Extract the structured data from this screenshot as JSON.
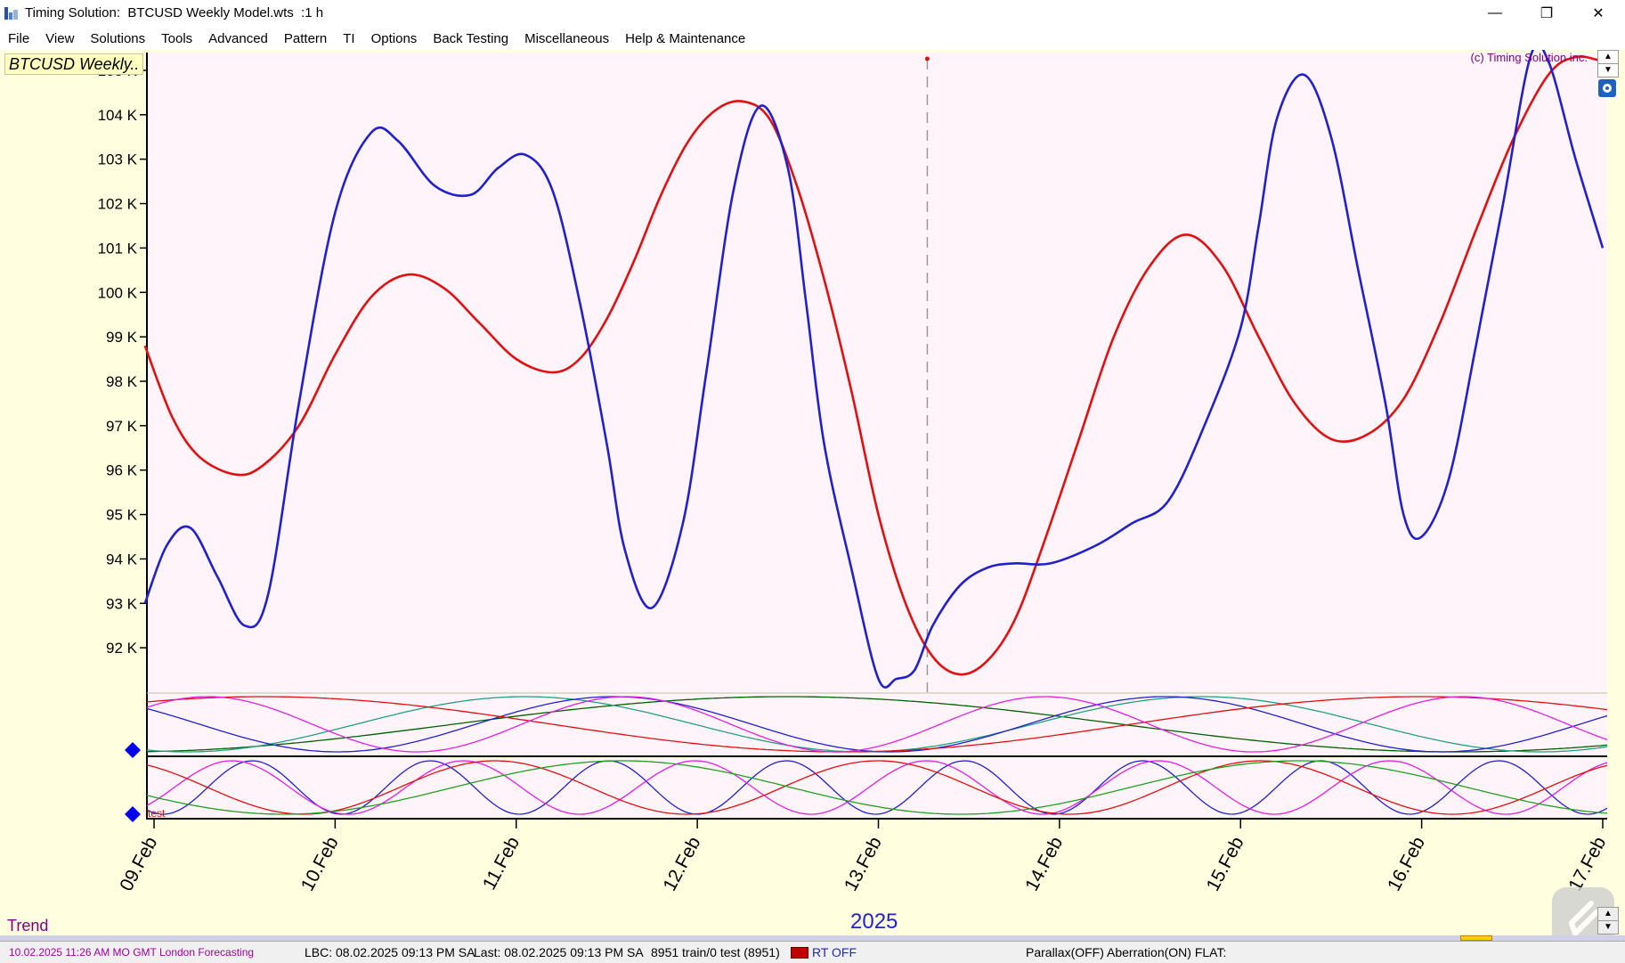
{
  "window": {
    "title": "Timing Solution:  BTCUSD Weekly Model.wts  :1 h",
    "minimize": "—",
    "maximize": "❐",
    "close": "✕"
  },
  "menu": [
    "File",
    "View",
    "Solutions",
    "Tools",
    "Advanced",
    "Pattern",
    "TI",
    "Options",
    "Back Testing",
    "Miscellaneous",
    "Help & Maintenance"
  ],
  "chart": {
    "label": "BTCUSD Weekly..",
    "copyright": "(c) Timing Solution inc.",
    "trend_label": "Trend",
    "year": "2025",
    "marker_label": "test",
    "colors": {
      "background": "#ffffe0",
      "plot_bg": "#fff4fa",
      "price_curve": "#2020cc",
      "forecast_curve": "#e01010"
    }
  },
  "chart_data": {
    "type": "line",
    "ylabel": "",
    "ylim": [
      91,
      105.4
    ],
    "yunit": "K",
    "yticks": [
      "92 K",
      "93 K",
      "94 K",
      "95 K",
      "96 K",
      "97 K",
      "98 K",
      "99 K",
      "100 K",
      "101 K",
      "102 K",
      "103 K",
      "104 K",
      "105 K"
    ],
    "ytick_values": [
      92,
      93,
      94,
      95,
      96,
      97,
      98,
      99,
      100,
      101,
      102,
      103,
      104,
      105
    ],
    "xticks": [
      "09.Feb",
      "10.Feb",
      "11.Feb",
      "12.Feb",
      "13.Feb",
      "14.Feb",
      "15.Feb",
      "16.Feb",
      "17.Feb"
    ],
    "xlim": [
      8.95,
      17.0
    ],
    "current_time_x": 13.27,
    "series": [
      {
        "color": "#2020cc",
        "x": [
          8.95,
          9.07,
          9.2,
          9.35,
          9.5,
          9.63,
          9.8,
          10.0,
          10.2,
          10.35,
          10.55,
          10.75,
          10.9,
          11.05,
          11.2,
          11.35,
          11.5,
          11.6,
          11.75,
          11.92,
          12.05,
          12.2,
          12.35,
          12.5,
          12.6,
          12.7,
          12.85,
          13.0,
          13.1,
          13.2,
          13.3,
          13.45,
          13.6,
          13.75,
          13.95,
          14.2,
          14.4,
          14.6,
          14.8,
          15.0,
          15.1,
          15.2,
          15.35,
          15.5,
          15.65,
          15.8,
          15.9,
          16.0,
          16.15,
          16.3,
          16.45,
          16.6,
          16.7,
          16.85,
          17.0
        ],
        "y": [
          93.0,
          94.3,
          94.7,
          93.6,
          92.5,
          93.2,
          97.5,
          101.8,
          103.6,
          103.4,
          102.4,
          102.2,
          102.8,
          103.1,
          102.3,
          99.8,
          96.6,
          94.2,
          92.9,
          94.8,
          98.2,
          102.3,
          104.2,
          102.8,
          99.8,
          96.6,
          93.8,
          91.3,
          91.3,
          91.5,
          92.5,
          93.4,
          93.8,
          93.9,
          93.9,
          94.3,
          94.8,
          95.3,
          97.0,
          99.2,
          101.5,
          103.9,
          104.9,
          103.5,
          100.5,
          97.5,
          95.0,
          94.5,
          95.8,
          98.8,
          102.0,
          105.3,
          105.2,
          103.0,
          101.0
        ]
      },
      {
        "color": "#e01010",
        "x": [
          8.95,
          9.1,
          9.25,
          9.45,
          9.6,
          9.8,
          10.0,
          10.2,
          10.4,
          10.6,
          10.8,
          11.0,
          11.2,
          11.35,
          11.5,
          11.65,
          11.8,
          11.95,
          12.1,
          12.25,
          12.4,
          12.55,
          12.7,
          12.85,
          13.0,
          13.15,
          13.3,
          13.45,
          13.6,
          13.75,
          13.9,
          14.1,
          14.3,
          14.5,
          14.7,
          14.9,
          15.1,
          15.3,
          15.5,
          15.7,
          15.9,
          16.1,
          16.3,
          16.5,
          16.7,
          16.85,
          17.0
        ],
        "y": [
          98.8,
          97.2,
          96.3,
          95.9,
          96.1,
          97.0,
          98.6,
          99.9,
          100.4,
          100.1,
          99.3,
          98.5,
          98.2,
          98.5,
          99.4,
          100.7,
          102.2,
          103.4,
          104.1,
          104.3,
          103.9,
          102.4,
          100.3,
          97.8,
          95.0,
          93.0,
          91.8,
          91.4,
          91.7,
          92.6,
          94.2,
          96.6,
          99.0,
          100.6,
          101.3,
          100.6,
          99.0,
          97.5,
          96.7,
          96.8,
          97.6,
          99.3,
          101.4,
          103.4,
          104.9,
          105.3,
          105.2
        ]
      }
    ]
  },
  "status": {
    "date": "10.02.2025  11:26 AM MO GMT London Forecasting",
    "lbc": "LBC: 08.02.2025  09:13 PM SA",
    "last": "Last: 08.02.2025  09:13 PM SA",
    "train": "8951 train/0 test (8951)",
    "rt": "RT OFF",
    "parallax": "Parallax(OFF) Aberration(ON) FLAT:"
  }
}
